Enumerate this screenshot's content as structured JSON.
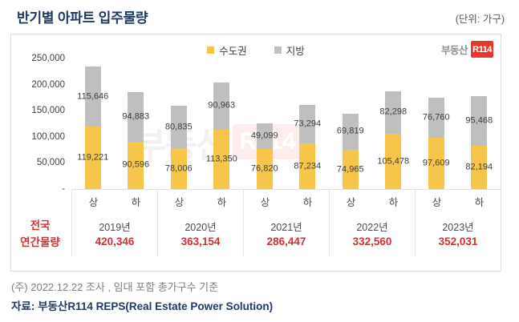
{
  "header": {
    "title": "반기별 아파트 입주물량",
    "unit": "(단위: 가구)"
  },
  "legend": [
    {
      "label": "수도권",
      "color": "#f6c64a"
    },
    {
      "label": "지방",
      "color": "#bfbfbf"
    }
  ],
  "brand": {
    "text": "부동산",
    "badge": "R114"
  },
  "watermark": {
    "text": "부동산",
    "badge": "R114"
  },
  "annual_row_label": {
    "line1": "전국",
    "line2": "연간물량"
  },
  "chart_data": {
    "type": "bar",
    "stacked": true,
    "title": "반기별 아파트 입주물량",
    "unit_label": "(단위: 가구)",
    "ylim": [
      0,
      250000
    ],
    "grid": false,
    "legend_position": "top-center",
    "y_ticks": [
      {
        "label": "250,000",
        "value": 250000
      },
      {
        "label": "200,000",
        "value": 200000
      },
      {
        "label": "150,000",
        "value": 150000
      },
      {
        "label": "100,000",
        "value": 100000
      },
      {
        "label": "50,000",
        "value": 50000
      },
      {
        "label": "-",
        "value": 0
      }
    ],
    "series_names": [
      "수도권",
      "지방"
    ],
    "colors": {
      "sudogwon": "#f6c64a",
      "jibang": "#bfbfbf",
      "annual_total": "#d92e2e"
    },
    "groups": [
      {
        "year": "2019년",
        "annual_total": "420,346",
        "bars": [
          {
            "half": "상",
            "sudogwon": 119221,
            "jibang": 115646
          },
          {
            "half": "하",
            "sudogwon": 90596,
            "jibang": 94883
          }
        ]
      },
      {
        "year": "2020년",
        "annual_total": "363,154",
        "bars": [
          {
            "half": "상",
            "sudogwon": 78006,
            "jibang": 80835
          },
          {
            "half": "하",
            "sudogwon": 113350,
            "jibang": 90963
          }
        ]
      },
      {
        "year": "2021년",
        "annual_total": "286,447",
        "bars": [
          {
            "half": "상",
            "sudogwon": 76820,
            "jibang": 49099
          },
          {
            "half": "하",
            "sudogwon": 87234,
            "jibang": 73294
          }
        ]
      },
      {
        "year": "2022년",
        "annual_total": "332,560",
        "bars": [
          {
            "half": "상",
            "sudogwon": 74965,
            "jibang": 69819
          },
          {
            "half": "하",
            "sudogwon": 105478,
            "jibang": 82298
          }
        ]
      },
      {
        "year": "2023년",
        "annual_total": "352,031",
        "bars": [
          {
            "half": "상",
            "sudogwon": 97609,
            "jibang": 76760
          },
          {
            "half": "하",
            "sudogwon": 82194,
            "jibang": 95468
          }
        ]
      }
    ],
    "annual_row_label": "전국 연간물량"
  },
  "footer": {
    "note": "(주) 2022.12.22 조사 , 임대 포함 총가구수 기준",
    "source": "자료: 부동산R114 REPS(Real Estate Power Solution)"
  }
}
